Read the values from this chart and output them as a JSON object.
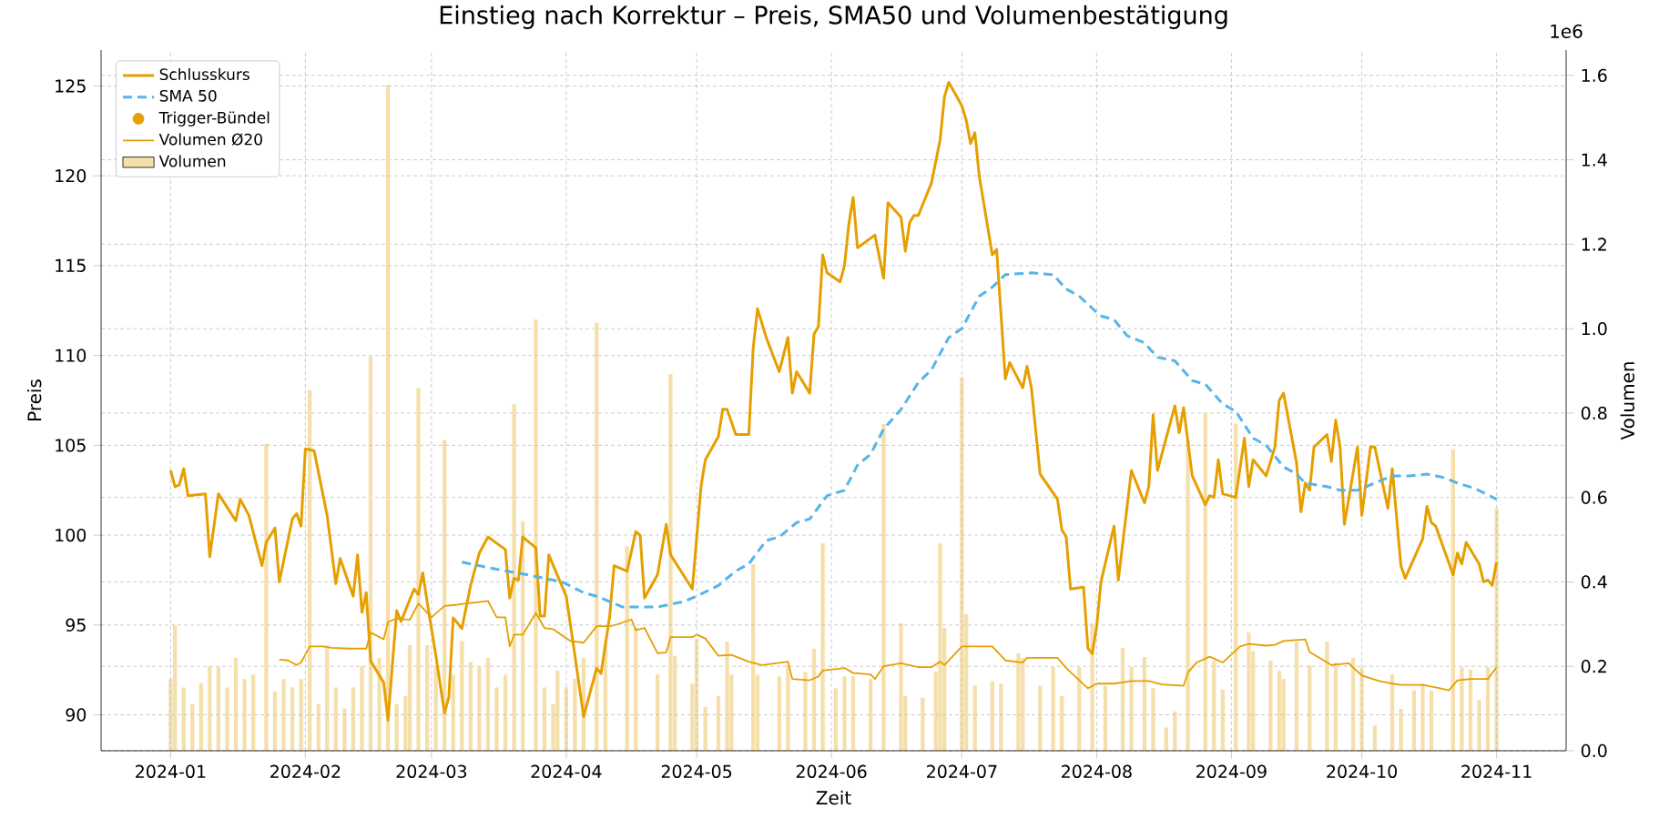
{
  "chart_data": {
    "type": "line",
    "title": "Einstieg nach Korrektur – Preis, SMA50 und Volumenbestätigung",
    "xlabel": "Zeit",
    "ylabel": "Preis",
    "y2label": "Volumen",
    "annotations": [
      "1e6"
    ],
    "xlim": [
      "2023-12-16",
      "2024-11-17"
    ],
    "xticks": [
      "2024-01",
      "2024-02",
      "2024-03",
      "2024-04",
      "2024-05",
      "2024-06",
      "2024-07",
      "2024-08",
      "2024-09",
      "2024-10",
      "2024-11"
    ],
    "ylim": [
      88,
      127
    ],
    "yticks": [
      90,
      95,
      100,
      105,
      110,
      115,
      120,
      125
    ],
    "y2lim": [
      0,
      1.66
    ],
    "y2ticks": [
      {
        "value": 0,
        "label": "0.0"
      },
      0.2,
      0.4,
      0.6,
      0.8,
      {
        "value": 1,
        "label": "1.0"
      },
      1.2,
      1.4,
      1.6
    ],
    "grid": true,
    "legend": "top left",
    "series": [
      {
        "name": "Schlusskurs",
        "color": "#e69f00",
        "x": [
          "2024-01-01",
          "2024-01-02",
          "2024-01-03",
          "2024-01-04",
          "2024-01-05",
          "2024-01-09",
          "2024-01-10",
          "2024-01-12",
          "2024-01-16",
          "2024-01-17",
          "2024-01-19",
          "2024-01-22",
          "2024-01-23",
          "2024-01-25",
          "2024-01-26",
          "2024-01-29",
          "2024-01-30",
          "2024-01-31",
          "2024-02-01",
          "2024-02-03",
          "2024-02-06",
          "2024-02-08",
          "2024-02-09",
          "2024-02-12",
          "2024-02-13",
          "2024-02-14",
          "2024-02-15",
          "2024-02-16",
          "2024-02-19",
          "2024-02-20",
          "2024-02-22",
          "2024-02-23",
          "2024-02-26",
          "2024-02-27",
          "2024-02-28",
          "2024-02-29",
          "2024-03-02",
          "2024-03-04",
          "2024-03-05",
          "2024-03-06",
          "2024-03-08",
          "2024-03-10",
          "2024-03-12",
          "2024-03-14",
          "2024-03-18",
          "2024-03-19",
          "2024-03-20",
          "2024-03-21",
          "2024-03-22",
          "2024-03-25",
          "2024-03-26",
          "2024-03-27",
          "2024-03-28",
          "2024-04-01",
          "2024-04-03",
          "2024-04-05",
          "2024-04-08",
          "2024-04-09",
          "2024-04-11",
          "2024-04-12",
          "2024-04-15",
          "2024-04-17",
          "2024-04-18",
          "2024-04-19",
          "2024-04-22",
          "2024-04-24",
          "2024-04-25",
          "2024-04-30",
          "2024-05-02",
          "2024-05-03",
          "2024-05-06",
          "2024-05-07",
          "2024-05-08",
          "2024-05-10",
          "2024-05-13",
          "2024-05-14",
          "2024-05-15",
          "2024-05-17",
          "2024-05-20",
          "2024-05-22",
          "2024-05-23",
          "2024-05-24",
          "2024-05-27",
          "2024-05-28",
          "2024-05-29",
          "2024-05-30",
          "2024-05-31",
          "2024-06-03",
          "2024-06-04",
          "2024-06-05",
          "2024-06-06",
          "2024-06-07",
          "2024-06-11",
          "2024-06-13",
          "2024-06-14",
          "2024-06-17",
          "2024-06-18",
          "2024-06-19",
          "2024-06-20",
          "2024-06-21",
          "2024-06-24",
          "2024-06-26",
          "2024-06-27",
          "2024-06-28",
          "2024-07-01",
          "2024-07-02",
          "2024-07-03",
          "2024-07-04",
          "2024-07-05",
          "2024-07-08",
          "2024-07-09",
          "2024-07-11",
          "2024-07-12",
          "2024-07-15",
          "2024-07-16",
          "2024-07-17",
          "2024-07-19",
          "2024-07-23",
          "2024-07-24",
          "2024-07-25",
          "2024-07-26",
          "2024-07-29",
          "2024-07-30",
          "2024-07-31",
          "2024-08-01",
          "2024-08-02",
          "2024-08-05",
          "2024-08-06",
          "2024-08-09",
          "2024-08-12",
          "2024-08-13",
          "2024-08-14",
          "2024-08-15",
          "2024-08-19",
          "2024-08-20",
          "2024-08-21",
          "2024-08-23",
          "2024-08-26",
          "2024-08-27",
          "2024-08-28",
          "2024-08-29",
          "2024-08-30",
          "2024-09-02",
          "2024-09-04",
          "2024-09-05",
          "2024-09-06",
          "2024-09-09",
          "2024-09-11",
          "2024-09-12",
          "2024-09-13",
          "2024-09-16",
          "2024-09-17",
          "2024-09-18",
          "2024-09-19",
          "2024-09-20",
          "2024-09-23",
          "2024-09-24",
          "2024-09-25",
          "2024-09-26",
          "2024-09-27",
          "2024-09-30",
          "2024-10-01",
          "2024-10-03",
          "2024-10-04",
          "2024-10-07",
          "2024-10-08",
          "2024-10-10",
          "2024-10-11",
          "2024-10-15",
          "2024-10-16",
          "2024-10-17",
          "2024-10-18",
          "2024-10-22",
          "2024-10-23",
          "2024-10-24",
          "2024-10-25",
          "2024-10-28",
          "2024-10-29",
          "2024-10-30",
          "2024-10-31",
          "2024-11-01"
        ],
        "values": [
          103.6,
          102.7,
          102.8,
          103.7,
          102.2,
          102.3,
          98.8,
          102.3,
          100.8,
          102.0,
          101.1,
          98.3,
          99.6,
          100.4,
          97.4,
          100.9,
          101.2,
          100.5,
          104.8,
          104.7,
          101.1,
          97.3,
          98.7,
          96.6,
          98.9,
          95.7,
          96.8,
          93.0,
          91.8,
          89.7,
          95.8,
          95.2,
          97.0,
          96.7,
          97.9,
          96.3,
          93.3,
          90.1,
          91.0,
          95.4,
          94.8,
          97.2,
          99.0,
          99.9,
          99.2,
          96.5,
          97.6,
          97.5,
          99.9,
          99.3,
          95.5,
          95.5,
          98.9,
          96.6,
          93.3,
          89.9,
          92.6,
          92.3,
          95.5,
          98.3,
          98.0,
          100.2,
          100.0,
          96.5,
          97.8,
          100.6,
          98.9,
          97.0,
          102.7,
          104.2,
          105.5,
          107.0,
          107.0,
          105.6,
          105.6,
          110.4,
          112.6,
          111.0,
          109.1,
          111.0,
          107.9,
          109.1,
          107.9,
          111.2,
          111.6,
          115.6,
          114.6,
          114.1,
          115.0,
          117.3,
          118.8,
          116.0,
          116.7,
          114.3,
          118.5,
          117.7,
          115.8,
          117.4,
          117.8,
          117.8,
          119.6,
          122.0,
          124.4,
          125.2,
          123.9,
          123.1,
          121.8,
          122.4,
          120.0,
          115.6,
          115.9,
          108.7,
          109.6,
          108.2,
          109.4,
          108.2,
          103.4,
          102.0,
          100.3,
          99.9,
          97.0,
          97.1,
          93.7,
          93.4,
          94.9,
          97.4,
          100.5,
          97.5,
          103.6,
          101.8,
          102.7,
          106.7,
          103.6,
          107.2,
          105.7,
          107.1,
          103.3,
          101.7,
          102.2,
          102.1,
          104.2,
          102.3,
          102.1,
          105.4,
          102.7,
          104.2,
          103.3,
          104.9,
          107.5,
          107.9,
          104.0,
          101.3,
          102.9,
          102.5,
          104.9,
          105.6,
          104.1,
          106.4,
          104.9,
          100.6,
          104.9,
          101.1,
          104.9,
          104.9,
          101.5,
          103.7,
          98.3,
          97.6,
          99.8,
          101.6,
          100.7,
          100.5,
          97.8,
          99.0,
          98.4,
          99.6,
          98.4,
          97.4,
          97.5,
          97.2,
          98.5
        ]
      },
      {
        "name": "SMA 50",
        "color": "#56b4e9",
        "line_style": "dashed",
        "x": [
          "2024-03-08",
          "2024-03-16",
          "2024-03-23",
          "2024-03-31",
          "2024-04-05",
          "2024-04-08",
          "2024-04-11",
          "2024-04-14",
          "2024-04-22",
          "2024-04-28",
          "2024-05-01",
          "2024-05-06",
          "2024-05-10",
          "2024-05-13",
          "2024-05-17",
          "2024-05-20",
          "2024-05-24",
          "2024-05-27",
          "2024-05-31",
          "2024-06-04",
          "2024-06-07",
          "2024-06-10",
          "2024-06-13",
          "2024-06-17",
          "2024-06-21",
          "2024-06-24",
          "2024-06-28",
          "2024-07-01",
          "2024-07-05",
          "2024-07-08",
          "2024-07-11",
          "2024-07-17",
          "2024-07-22",
          "2024-07-25",
          "2024-07-28",
          "2024-08-01",
          "2024-08-02",
          "2024-08-05",
          "2024-08-08",
          "2024-08-12",
          "2024-08-15",
          "2024-08-19",
          "2024-08-23",
          "2024-08-26",
          "2024-08-30",
          "2024-09-02",
          "2024-09-06",
          "2024-09-09",
          "2024-09-13",
          "2024-09-16",
          "2024-09-18",
          "2024-09-23",
          "2024-09-26",
          "2024-09-30",
          "2024-10-04",
          "2024-10-08",
          "2024-10-12",
          "2024-10-16",
          "2024-10-20",
          "2024-10-23",
          "2024-10-27",
          "2024-11-01"
        ],
        "values": [
          98.5,
          98.1,
          97.8,
          97.4,
          96.8,
          96.6,
          96.3,
          96.0,
          96.0,
          96.3,
          96.6,
          97.2,
          98.0,
          98.4,
          99.7,
          99.9,
          100.7,
          100.9,
          102.2,
          102.5,
          103.9,
          104.5,
          105.9,
          107.0,
          108.5,
          109.2,
          111.0,
          111.5,
          113.3,
          113.8,
          114.5,
          114.6,
          114.5,
          113.7,
          113.3,
          112.4,
          112.2,
          112.0,
          111.1,
          110.7,
          109.9,
          109.7,
          108.6,
          108.4,
          107.3,
          106.9,
          105.4,
          105.0,
          103.8,
          103.4,
          102.9,
          102.7,
          102.5,
          102.5,
          102.9,
          103.3,
          103.3,
          103.4,
          103.2,
          102.9,
          102.6,
          102.0
        ]
      },
      {
        "name": "Trigger-Bündel",
        "type": "scatter",
        "color": "#e69f00"
      },
      {
        "name": "Volumen Ø20",
        "type": "line",
        "axis": "y2",
        "color": "#e69f00",
        "x": [
          "2024-01-26",
          "2024-01-28",
          "2024-01-30",
          "2024-01-31",
          "2024-02-02",
          "2024-02-05",
          "2024-02-07",
          "2024-02-11",
          "2024-02-15",
          "2024-02-16",
          "2024-02-19",
          "2024-02-20",
          "2024-02-22",
          "2024-02-25",
          "2024-02-27",
          "2024-03-01",
          "2024-03-04",
          "2024-03-07",
          "2024-03-09",
          "2024-03-12",
          "2024-03-14",
          "2024-03-16",
          "2024-03-18",
          "2024-03-19",
          "2024-03-20",
          "2024-03-22",
          "2024-03-25",
          "2024-03-27",
          "2024-03-29",
          "2024-04-02",
          "2024-04-05",
          "2024-04-08",
          "2024-04-11",
          "2024-04-12",
          "2024-04-16",
          "2024-04-17",
          "2024-04-19",
          "2024-04-22",
          "2024-04-24",
          "2024-04-25",
          "2024-04-30",
          "2024-05-01",
          "2024-05-03",
          "2024-05-06",
          "2024-05-09",
          "2024-05-13",
          "2024-05-16",
          "2024-05-22",
          "2024-05-23",
          "2024-05-27",
          "2024-05-29",
          "2024-05-30",
          "2024-06-04",
          "2024-06-06",
          "2024-06-10",
          "2024-06-11",
          "2024-06-13",
          "2024-06-17",
          "2024-06-21",
          "2024-06-24",
          "2024-06-26",
          "2024-06-27",
          "2024-07-01",
          "2024-07-08",
          "2024-07-11",
          "2024-07-15",
          "2024-07-16",
          "2024-07-23",
          "2024-07-25",
          "2024-07-30",
          "2024-08-01",
          "2024-08-05",
          "2024-08-09",
          "2024-08-13",
          "2024-08-16",
          "2024-08-21",
          "2024-08-22",
          "2024-08-24",
          "2024-08-27",
          "2024-08-30",
          "2024-09-03",
          "2024-09-05",
          "2024-09-09",
          "2024-09-11",
          "2024-09-13",
          "2024-09-18",
          "2024-09-19",
          "2024-09-24",
          "2024-09-28",
          "2024-10-01",
          "2024-10-05",
          "2024-10-08",
          "2024-10-10",
          "2024-10-15",
          "2024-10-19",
          "2024-10-21",
          "2024-10-23",
          "2024-10-26",
          "2024-10-30",
          "2024-11-01"
        ],
        "values": [
          0.216,
          0.214,
          0.203,
          0.209,
          0.247,
          0.247,
          0.244,
          0.242,
          0.242,
          0.28,
          0.264,
          0.305,
          0.313,
          0.31,
          0.349,
          0.316,
          0.343,
          0.346,
          0.349,
          0.352,
          0.355,
          0.316,
          0.316,
          0.247,
          0.275,
          0.275,
          0.326,
          0.291,
          0.288,
          0.26,
          0.256,
          0.295,
          0.295,
          0.297,
          0.311,
          0.286,
          0.291,
          0.231,
          0.233,
          0.269,
          0.269,
          0.275,
          0.266,
          0.225,
          0.227,
          0.211,
          0.203,
          0.211,
          0.17,
          0.167,
          0.176,
          0.19,
          0.196,
          0.184,
          0.181,
          0.17,
          0.2,
          0.207,
          0.198,
          0.198,
          0.211,
          0.203,
          0.247,
          0.247,
          0.214,
          0.209,
          0.22,
          0.22,
          0.196,
          0.148,
          0.159,
          0.159,
          0.165,
          0.165,
          0.157,
          0.154,
          0.185,
          0.209,
          0.223,
          0.209,
          0.247,
          0.253,
          0.249,
          0.251,
          0.26,
          0.264,
          0.234,
          0.203,
          0.207,
          0.178,
          0.165,
          0.159,
          0.156,
          0.156,
          0.148,
          0.143,
          0.167,
          0.17,
          0.17,
          0.198
        ]
      },
      {
        "name": "Volumen",
        "type": "bar",
        "axis": "y2",
        "color": "#f5dfab",
        "x": [
          "2024-01-01",
          "2024-01-02",
          "2024-01-04",
          "2024-01-06",
          "2024-01-08",
          "2024-01-10",
          "2024-01-12",
          "2024-01-14",
          "2024-01-16",
          "2024-01-18",
          "2024-01-20",
          "2024-01-23",
          "2024-01-25",
          "2024-01-27",
          "2024-01-29",
          "2024-01-31",
          "2024-02-02",
          "2024-02-04",
          "2024-02-06",
          "2024-02-08",
          "2024-02-10",
          "2024-02-12",
          "2024-02-14",
          "2024-02-16",
          "2024-02-18",
          "2024-02-20",
          "2024-02-22",
          "2024-02-24",
          "2024-02-25",
          "2024-02-27",
          "2024-02-29",
          "2024-03-02",
          "2024-03-04",
          "2024-03-06",
          "2024-03-08",
          "2024-03-10",
          "2024-03-12",
          "2024-03-14",
          "2024-03-16",
          "2024-03-18",
          "2024-03-20",
          "2024-03-22",
          "2024-03-25",
          "2024-03-27",
          "2024-03-29",
          "2024-03-30",
          "2024-04-01",
          "2024-04-03",
          "2024-04-05",
          "2024-04-08",
          "2024-04-10",
          "2024-04-15",
          "2024-04-17",
          "2024-04-22",
          "2024-04-25",
          "2024-04-26",
          "2024-04-30",
          "2024-05-01",
          "2024-05-03",
          "2024-05-06",
          "2024-05-08",
          "2024-05-09",
          "2024-05-14",
          "2024-05-15",
          "2024-05-20",
          "2024-05-22",
          "2024-05-26",
          "2024-05-28",
          "2024-05-30",
          "2024-06-02",
          "2024-06-04",
          "2024-06-06",
          "2024-06-10",
          "2024-06-13",
          "2024-06-17",
          "2024-06-18",
          "2024-06-22",
          "2024-06-25",
          "2024-06-26",
          "2024-06-27",
          "2024-07-01",
          "2024-07-02",
          "2024-07-04",
          "2024-07-08",
          "2024-07-10",
          "2024-07-14",
          "2024-07-15",
          "2024-07-19",
          "2024-07-22",
          "2024-07-24",
          "2024-07-28",
          "2024-07-31",
          "2024-08-03",
          "2024-08-07",
          "2024-08-09",
          "2024-08-12",
          "2024-08-14",
          "2024-08-17",
          "2024-08-19",
          "2024-08-22",
          "2024-08-26",
          "2024-08-28",
          "2024-08-30",
          "2024-09-02",
          "2024-09-05",
          "2024-09-06",
          "2024-09-10",
          "2024-09-12",
          "2024-09-13",
          "2024-09-16",
          "2024-09-19",
          "2024-09-23",
          "2024-09-25",
          "2024-09-29",
          "2024-10-01",
          "2024-10-04",
          "2024-10-08",
          "2024-10-10",
          "2024-10-13",
          "2024-10-15",
          "2024-10-17",
          "2024-10-22",
          "2024-10-24",
          "2024-10-26",
          "2024-10-28",
          "2024-10-30",
          "2024-11-01"
        ],
        "values": [
          0.17,
          0.297,
          0.15,
          0.11,
          0.16,
          0.2,
          0.2,
          0.15,
          0.22,
          0.17,
          0.18,
          0.727,
          0.14,
          0.17,
          0.15,
          0.17,
          0.855,
          0.11,
          0.25,
          0.15,
          0.1,
          0.15,
          0.2,
          0.934,
          0.22,
          1.577,
          0.11,
          0.13,
          0.25,
          0.859,
          0.25,
          0.2,
          0.736,
          0.18,
          0.26,
          0.21,
          0.2,
          0.22,
          0.15,
          0.18,
          0.821,
          0.544,
          1.022,
          0.15,
          0.11,
          0.19,
          0.15,
          0.17,
          0.22,
          1.014,
          0.253,
          0.484,
          0.291,
          0.181,
          0.892,
          0.225,
          0.159,
          0.264,
          0.104,
          0.13,
          0.258,
          0.18,
          0.442,
          0.18,
          0.176,
          0.203,
          0.187,
          0.242,
          0.492,
          0.148,
          0.176,
          0.176,
          0.17,
          0.774,
          0.302,
          0.13,
          0.126,
          0.187,
          0.491,
          0.291,
          0.885,
          0.324,
          0.154,
          0.165,
          0.159,
          0.231,
          0.22,
          0.154,
          0.198,
          0.13,
          0.198,
          0.302,
          0.154,
          0.244,
          0.198,
          0.222,
          0.148,
          0.055,
          0.093,
          0.736,
          0.802,
          0.214,
          0.145,
          0.775,
          0.28,
          0.236,
          0.214,
          0.189,
          0.17,
          0.258,
          0.203,
          0.258,
          0.209,
          0.22,
          0.196,
          0.06,
          0.181,
          0.099,
          0.143,
          0.159,
          0.143,
          0.714,
          0.198,
          0.192,
          0.121,
          0.198,
          0.574
        ]
      }
    ]
  }
}
